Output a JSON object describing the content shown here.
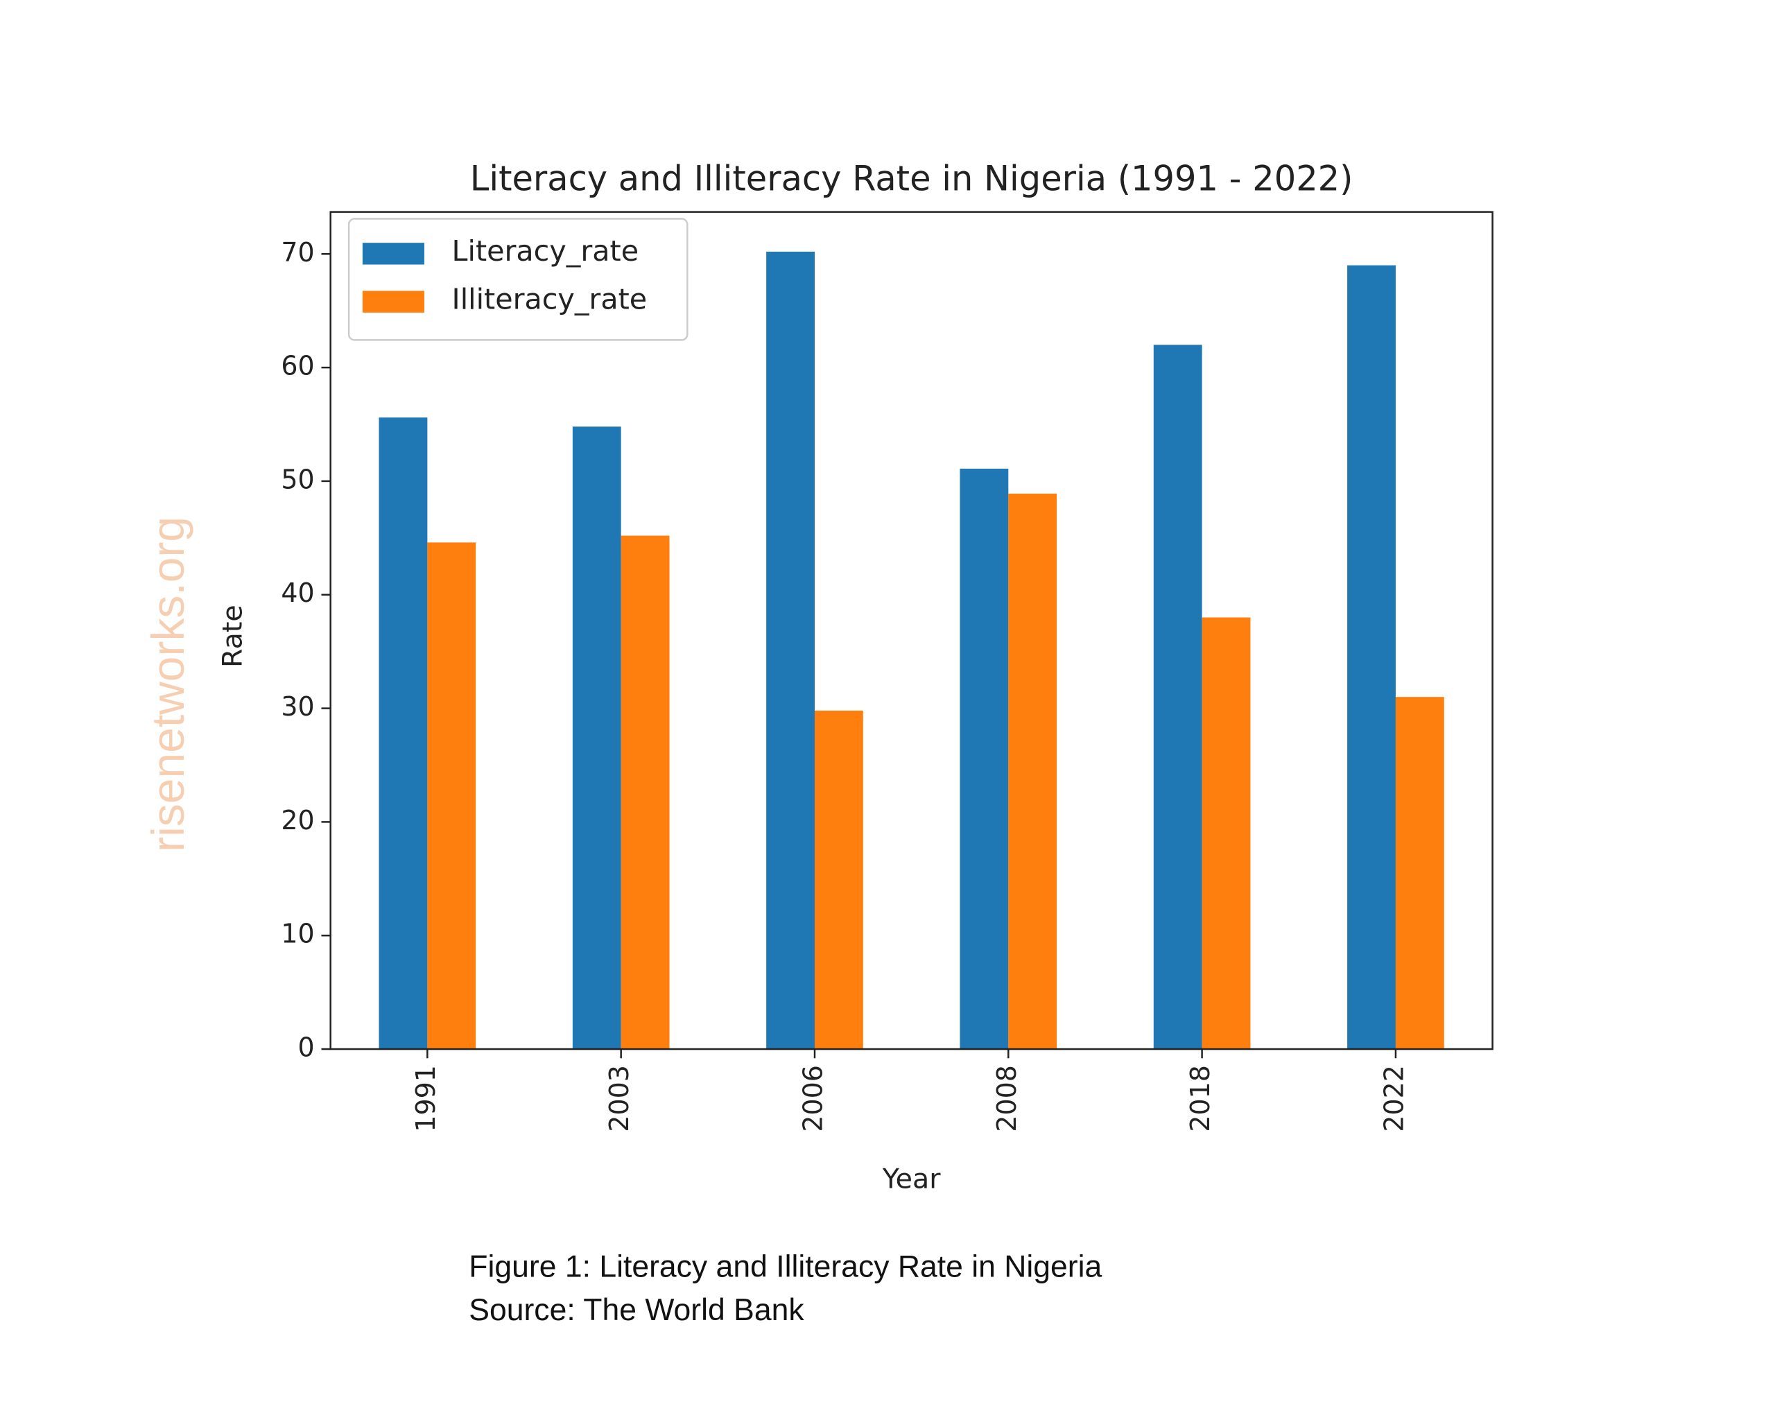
{
  "chart_data": {
    "type": "bar",
    "title": "Literacy and Illiteracy Rate in Nigeria (1991 - 2022)",
    "x_label": "Year",
    "y_label": "Rate",
    "categories": [
      "1991",
      "2003",
      "2006",
      "2008",
      "2018",
      "2022"
    ],
    "series": [
      {
        "name": "Literacy_rate",
        "color": "#1f77b4",
        "values": [
          55.6,
          54.8,
          70.2,
          51.1,
          62.0,
          69.0
        ]
      },
      {
        "name": "Illiteracy_rate",
        "color": "#ff7f0e",
        "values": [
          44.6,
          45.2,
          29.8,
          48.9,
          38.0,
          31.0
        ]
      }
    ],
    "ylim": [
      0,
      73.7
    ],
    "yticks": [
      0,
      10,
      20,
      30,
      40,
      50,
      60,
      70
    ],
    "grid": false,
    "legend": "upper left"
  },
  "watermark": "risenetworks.org",
  "caption": [
    "Figure 1: Literacy and Illiteracy Rate in Nigeria",
    "Source: The World Bank"
  ]
}
